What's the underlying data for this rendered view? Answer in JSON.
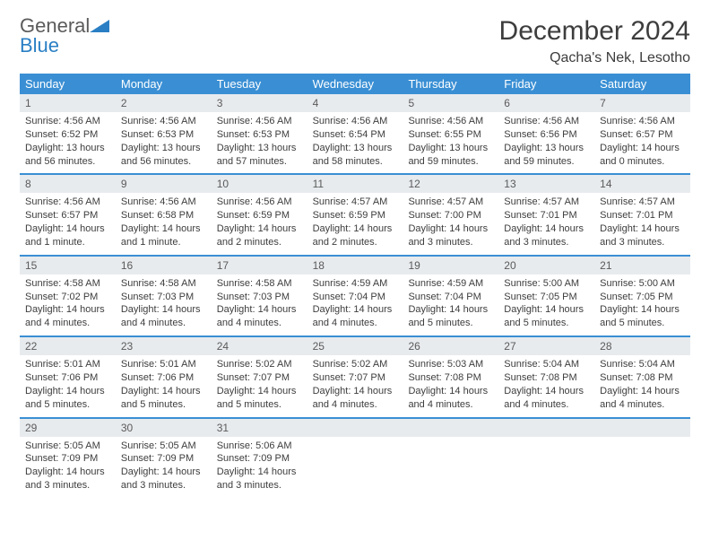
{
  "brand": {
    "part1": "General",
    "part2": "Blue"
  },
  "title": "December 2024",
  "location": "Qacha's Nek, Lesotho",
  "colors": {
    "accent": "#3a8fd4",
    "daynum_bg": "#e8ebee",
    "text": "#3d3d3d",
    "brand_gray": "#5b5b5b",
    "brand_blue": "#2a7fc4"
  },
  "weekdays": [
    "Sunday",
    "Monday",
    "Tuesday",
    "Wednesday",
    "Thursday",
    "Friday",
    "Saturday"
  ],
  "weeks": [
    [
      {
        "n": "1",
        "sunrise": "Sunrise: 4:56 AM",
        "sunset": "Sunset: 6:52 PM",
        "daylight": "Daylight: 13 hours and 56 minutes."
      },
      {
        "n": "2",
        "sunrise": "Sunrise: 4:56 AM",
        "sunset": "Sunset: 6:53 PM",
        "daylight": "Daylight: 13 hours and 56 minutes."
      },
      {
        "n": "3",
        "sunrise": "Sunrise: 4:56 AM",
        "sunset": "Sunset: 6:53 PM",
        "daylight": "Daylight: 13 hours and 57 minutes."
      },
      {
        "n": "4",
        "sunrise": "Sunrise: 4:56 AM",
        "sunset": "Sunset: 6:54 PM",
        "daylight": "Daylight: 13 hours and 58 minutes."
      },
      {
        "n": "5",
        "sunrise": "Sunrise: 4:56 AM",
        "sunset": "Sunset: 6:55 PM",
        "daylight": "Daylight: 13 hours and 59 minutes."
      },
      {
        "n": "6",
        "sunrise": "Sunrise: 4:56 AM",
        "sunset": "Sunset: 6:56 PM",
        "daylight": "Daylight: 13 hours and 59 minutes."
      },
      {
        "n": "7",
        "sunrise": "Sunrise: 4:56 AM",
        "sunset": "Sunset: 6:57 PM",
        "daylight": "Daylight: 14 hours and 0 minutes."
      }
    ],
    [
      {
        "n": "8",
        "sunrise": "Sunrise: 4:56 AM",
        "sunset": "Sunset: 6:57 PM",
        "daylight": "Daylight: 14 hours and 1 minute."
      },
      {
        "n": "9",
        "sunrise": "Sunrise: 4:56 AM",
        "sunset": "Sunset: 6:58 PM",
        "daylight": "Daylight: 14 hours and 1 minute."
      },
      {
        "n": "10",
        "sunrise": "Sunrise: 4:56 AM",
        "sunset": "Sunset: 6:59 PM",
        "daylight": "Daylight: 14 hours and 2 minutes."
      },
      {
        "n": "11",
        "sunrise": "Sunrise: 4:57 AM",
        "sunset": "Sunset: 6:59 PM",
        "daylight": "Daylight: 14 hours and 2 minutes."
      },
      {
        "n": "12",
        "sunrise": "Sunrise: 4:57 AM",
        "sunset": "Sunset: 7:00 PM",
        "daylight": "Daylight: 14 hours and 3 minutes."
      },
      {
        "n": "13",
        "sunrise": "Sunrise: 4:57 AM",
        "sunset": "Sunset: 7:01 PM",
        "daylight": "Daylight: 14 hours and 3 minutes."
      },
      {
        "n": "14",
        "sunrise": "Sunrise: 4:57 AM",
        "sunset": "Sunset: 7:01 PM",
        "daylight": "Daylight: 14 hours and 3 minutes."
      }
    ],
    [
      {
        "n": "15",
        "sunrise": "Sunrise: 4:58 AM",
        "sunset": "Sunset: 7:02 PM",
        "daylight": "Daylight: 14 hours and 4 minutes."
      },
      {
        "n": "16",
        "sunrise": "Sunrise: 4:58 AM",
        "sunset": "Sunset: 7:03 PM",
        "daylight": "Daylight: 14 hours and 4 minutes."
      },
      {
        "n": "17",
        "sunrise": "Sunrise: 4:58 AM",
        "sunset": "Sunset: 7:03 PM",
        "daylight": "Daylight: 14 hours and 4 minutes."
      },
      {
        "n": "18",
        "sunrise": "Sunrise: 4:59 AM",
        "sunset": "Sunset: 7:04 PM",
        "daylight": "Daylight: 14 hours and 4 minutes."
      },
      {
        "n": "19",
        "sunrise": "Sunrise: 4:59 AM",
        "sunset": "Sunset: 7:04 PM",
        "daylight": "Daylight: 14 hours and 5 minutes."
      },
      {
        "n": "20",
        "sunrise": "Sunrise: 5:00 AM",
        "sunset": "Sunset: 7:05 PM",
        "daylight": "Daylight: 14 hours and 5 minutes."
      },
      {
        "n": "21",
        "sunrise": "Sunrise: 5:00 AM",
        "sunset": "Sunset: 7:05 PM",
        "daylight": "Daylight: 14 hours and 5 minutes."
      }
    ],
    [
      {
        "n": "22",
        "sunrise": "Sunrise: 5:01 AM",
        "sunset": "Sunset: 7:06 PM",
        "daylight": "Daylight: 14 hours and 5 minutes."
      },
      {
        "n": "23",
        "sunrise": "Sunrise: 5:01 AM",
        "sunset": "Sunset: 7:06 PM",
        "daylight": "Daylight: 14 hours and 5 minutes."
      },
      {
        "n": "24",
        "sunrise": "Sunrise: 5:02 AM",
        "sunset": "Sunset: 7:07 PM",
        "daylight": "Daylight: 14 hours and 5 minutes."
      },
      {
        "n": "25",
        "sunrise": "Sunrise: 5:02 AM",
        "sunset": "Sunset: 7:07 PM",
        "daylight": "Daylight: 14 hours and 4 minutes."
      },
      {
        "n": "26",
        "sunrise": "Sunrise: 5:03 AM",
        "sunset": "Sunset: 7:08 PM",
        "daylight": "Daylight: 14 hours and 4 minutes."
      },
      {
        "n": "27",
        "sunrise": "Sunrise: 5:04 AM",
        "sunset": "Sunset: 7:08 PM",
        "daylight": "Daylight: 14 hours and 4 minutes."
      },
      {
        "n": "28",
        "sunrise": "Sunrise: 5:04 AM",
        "sunset": "Sunset: 7:08 PM",
        "daylight": "Daylight: 14 hours and 4 minutes."
      }
    ],
    [
      {
        "n": "29",
        "sunrise": "Sunrise: 5:05 AM",
        "sunset": "Sunset: 7:09 PM",
        "daylight": "Daylight: 14 hours and 3 minutes."
      },
      {
        "n": "30",
        "sunrise": "Sunrise: 5:05 AM",
        "sunset": "Sunset: 7:09 PM",
        "daylight": "Daylight: 14 hours and 3 minutes."
      },
      {
        "n": "31",
        "sunrise": "Sunrise: 5:06 AM",
        "sunset": "Sunset: 7:09 PM",
        "daylight": "Daylight: 14 hours and 3 minutes."
      },
      {
        "empty": true
      },
      {
        "empty": true
      },
      {
        "empty": true
      },
      {
        "empty": true
      }
    ]
  ]
}
